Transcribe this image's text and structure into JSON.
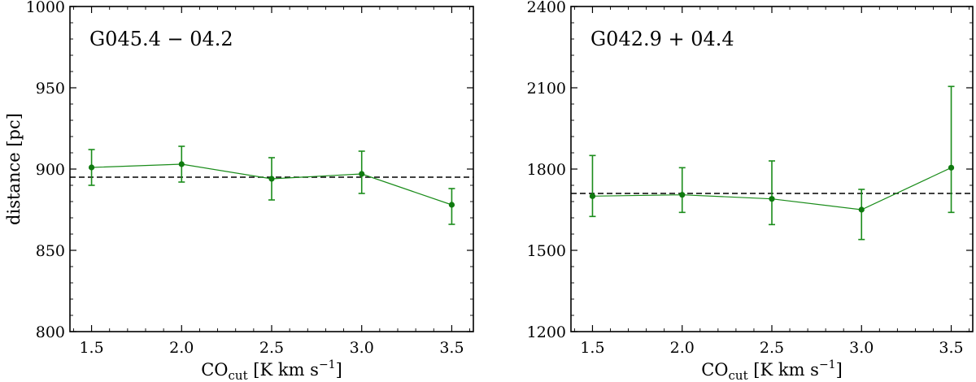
{
  "chart_data": [
    {
      "type": "line",
      "title": "G045.4 − 04.2",
      "xlabel_main": "CO",
      "xlabel_sub": "cut",
      "xlabel_rest": " [K km s",
      "xlabel_sup": "−1",
      "xlabel_end": "]",
      "ylabel": "distance [pc]",
      "xlim": [
        1.38,
        3.62
      ],
      "ylim": [
        800,
        1000
      ],
      "xticks": [
        "1.5",
        "2.0",
        "2.5",
        "3.0",
        "3.5"
      ],
      "yticks": [
        "800",
        "850",
        "900",
        "950",
        "1000"
      ],
      "ytick_values": [
        800,
        850,
        900,
        950,
        1000
      ],
      "xtick_values": [
        1.5,
        2.0,
        2.5,
        3.0,
        3.5
      ],
      "x": [
        1.5,
        2.0,
        2.5,
        3.0,
        3.5
      ],
      "y": [
        901,
        903,
        894,
        897,
        878
      ],
      "err_low": [
        11,
        11,
        13,
        12,
        12
      ],
      "err_high": [
        11,
        11,
        13,
        14,
        10
      ],
      "reference_line": 895,
      "color": "#1a8c1a"
    },
    {
      "type": "line",
      "title": "G042.9 + 04.4",
      "xlabel_main": "CO",
      "xlabel_sub": "cut",
      "xlabel_rest": " [K km s",
      "xlabel_sup": "−1",
      "xlabel_end": "]",
      "ylabel": "",
      "xlim": [
        1.38,
        3.62
      ],
      "ylim": [
        1200,
        2400
      ],
      "xticks": [
        "1.5",
        "2.0",
        "2.5",
        "3.0",
        "3.5"
      ],
      "yticks": [
        "1200",
        "1500",
        "1800",
        "2100",
        "2400"
      ],
      "ytick_values": [
        1200,
        1500,
        1800,
        2100,
        2400
      ],
      "xtick_values": [
        1.5,
        2.0,
        2.5,
        3.0,
        3.5
      ],
      "x": [
        1.5,
        2.0,
        2.5,
        3.0,
        3.5
      ],
      "y": [
        1700,
        1705,
        1690,
        1650,
        1805
      ],
      "err_low": [
        75,
        65,
        95,
        110,
        165
      ],
      "err_high": [
        150,
        100,
        140,
        75,
        300
      ],
      "reference_line": 1710,
      "color": "#1a8c1a"
    }
  ]
}
